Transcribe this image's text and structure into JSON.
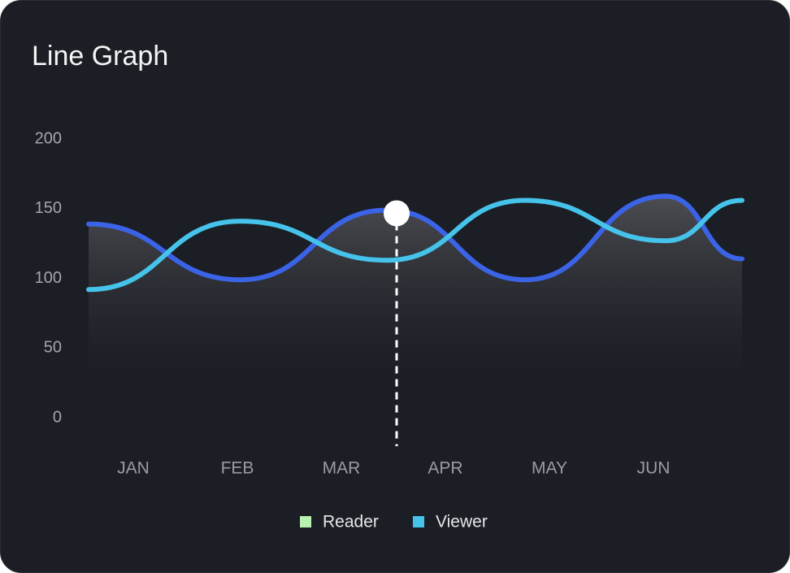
{
  "chart_data": {
    "type": "line",
    "title": "Line Graph",
    "categories": [
      "JAN",
      "FEB",
      "MAR",
      "APR",
      "MAY",
      "JUN"
    ],
    "series": [
      {
        "name": "Reader",
        "color": "#3b63e6",
        "legend_color": "#b8f2b0",
        "values": [
          139,
          99,
          149,
          99,
          159,
          114
        ]
      },
      {
        "name": "Viewer",
        "color": "#46c3ea",
        "legend_color": "#46c3ea",
        "values": [
          92,
          141,
          113,
          156,
          127,
          156
        ]
      }
    ],
    "ylim": [
      0,
      200
    ],
    "yticks": [
      0,
      50,
      100,
      150,
      200
    ],
    "highlight": {
      "series": 0,
      "index": 2
    }
  }
}
